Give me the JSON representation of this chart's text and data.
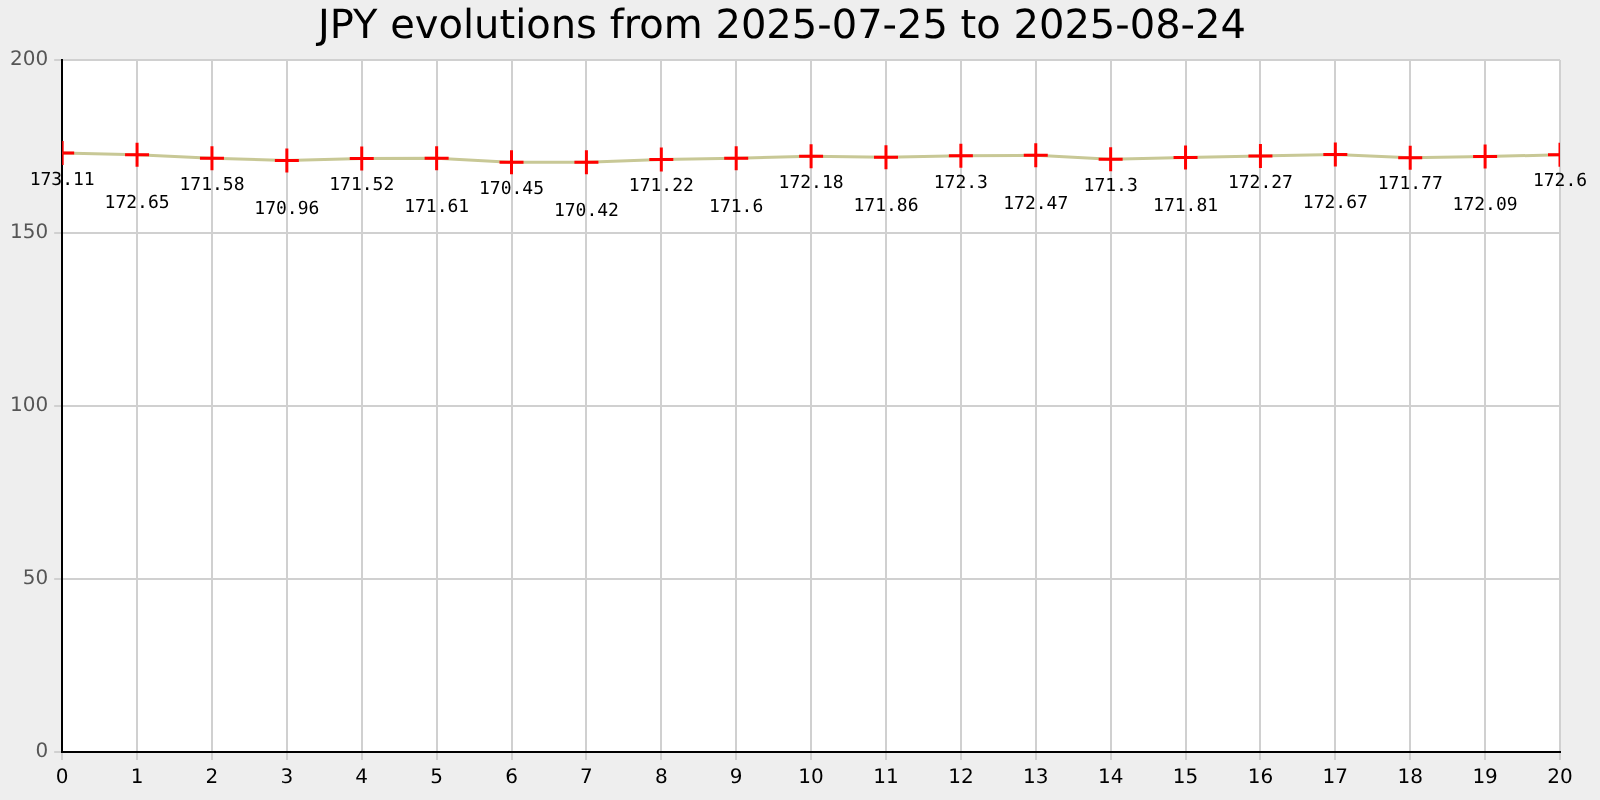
{
  "chart_data": {
    "type": "line",
    "title": "JPY evolutions from 2025-07-25 to 2025-08-24",
    "x": [
      0,
      1,
      2,
      3,
      4,
      5,
      6,
      7,
      8,
      9,
      10,
      11,
      12,
      13,
      14,
      15,
      16,
      17,
      18,
      19,
      20
    ],
    "series": [
      {
        "color": "#c8c896",
        "colors": [
          "#ff0000",
          "#ff0000",
          "#ff0000",
          "#ff0000",
          "#ff0000",
          "#ff0000",
          "#ff0000",
          "#ff0000",
          "#ff0000",
          "#ff0000",
          "#ff0000",
          "#ff0000",
          "#ff0000",
          "#ff0000",
          "#ff0000",
          "#ff0000",
          "#ff0000",
          "#ff0000",
          "#ff0000",
          "#ff0000",
          "#ff0000"
        ],
        "values": [
          173.11,
          172.65,
          171.58,
          170.96,
          171.52,
          171.61,
          170.45,
          170.42,
          171.22,
          171.6,
          172.18,
          171.86,
          172.3,
          172.47,
          171.3,
          171.81,
          172.27,
          172.67,
          171.77,
          172.09,
          172.6
        ]
      }
    ],
    "xlim": [
      0,
      20
    ],
    "xticks": [
      0,
      1,
      2,
      3,
      4,
      5,
      6,
      7,
      8,
      9,
      10,
      11,
      12,
      13,
      14,
      15,
      16,
      17,
      18,
      19,
      20
    ],
    "ylim": [
      0,
      200
    ],
    "yticks": [
      0,
      50,
      100,
      150,
      200
    ],
    "grid": true,
    "marker": "cross",
    "line_style": "solid",
    "data_labels": true,
    "legend": false
  }
}
